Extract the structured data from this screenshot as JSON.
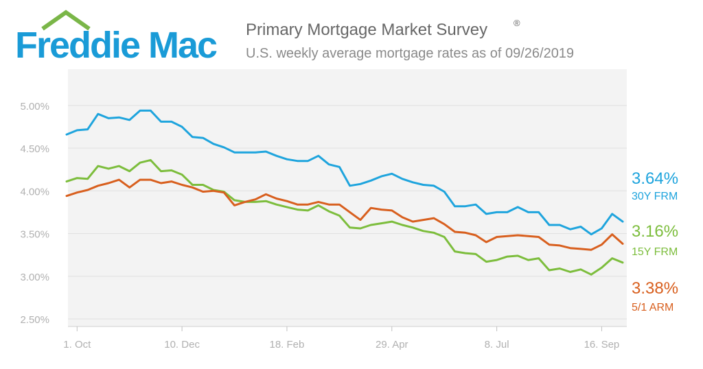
{
  "logo": {
    "text": "Freddie Mac",
    "house_color": "#7ab648",
    "text_color": "#1a9bd7"
  },
  "header": {
    "title": "Primary Mortgage Market Survey",
    "title_mark": "®",
    "subtitle": "U.S. weekly average mortgage rates as of 09/26/2019"
  },
  "chart_data": {
    "type": "line",
    "title": "Primary Mortgage Market Survey",
    "subtitle": "U.S. weekly average mortgage rates as of 09/26/2019",
    "xlabel": "",
    "ylabel": "",
    "ylim": [
      2.5,
      5.25
    ],
    "yticks": [
      2.5,
      3.0,
      3.5,
      4.0,
      4.5,
      5.0
    ],
    "ytick_labels": [
      "2.50%",
      "3.00%",
      "3.50%",
      "4.00%",
      "4.50%",
      "5.00%"
    ],
    "xticks": [
      {
        "label": "1. Oct",
        "index": 1
      },
      {
        "label": "10. Dec",
        "index": 11
      },
      {
        "label": "18. Feb",
        "index": 21
      },
      {
        "label": "29. Apr",
        "index": 31
      },
      {
        "label": "8. Jul",
        "index": 41
      },
      {
        "label": "16. Sep",
        "index": 51
      }
    ],
    "grid": true,
    "series": [
      {
        "name": "30Y FRM",
        "label": "3.64%",
        "color": "#1ea4dd",
        "values": [
          4.66,
          4.71,
          4.72,
          4.9,
          4.85,
          4.86,
          4.83,
          4.94,
          4.94,
          4.81,
          4.81,
          4.75,
          4.63,
          4.62,
          4.55,
          4.51,
          4.45,
          4.45,
          4.45,
          4.46,
          4.41,
          4.37,
          4.35,
          4.35,
          4.41,
          4.31,
          4.28,
          4.06,
          4.08,
          4.12,
          4.17,
          4.2,
          4.14,
          4.1,
          4.07,
          4.06,
          3.99,
          3.82,
          3.82,
          3.84,
          3.73,
          3.75,
          3.75,
          3.81,
          3.75,
          3.75,
          3.6,
          3.6,
          3.55,
          3.58,
          3.49,
          3.56,
          3.73,
          3.64
        ]
      },
      {
        "name": "15Y FRM",
        "label": "3.16%",
        "color": "#7cbd3c",
        "values": [
          4.11,
          4.15,
          4.14,
          4.29,
          4.26,
          4.29,
          4.23,
          4.33,
          4.36,
          4.23,
          4.24,
          4.19,
          4.07,
          4.07,
          4.01,
          3.99,
          3.89,
          3.87,
          3.87,
          3.88,
          3.84,
          3.81,
          3.78,
          3.77,
          3.83,
          3.76,
          3.71,
          3.57,
          3.56,
          3.6,
          3.62,
          3.64,
          3.6,
          3.57,
          3.53,
          3.51,
          3.46,
          3.29,
          3.27,
          3.26,
          3.17,
          3.19,
          3.23,
          3.24,
          3.19,
          3.21,
          3.07,
          3.09,
          3.05,
          3.08,
          3.02,
          3.1,
          3.21,
          3.16
        ]
      },
      {
        "name": "5/1 ARM",
        "label": "3.38%",
        "color": "#d85f1e",
        "values": [
          3.94,
          3.98,
          4.01,
          4.06,
          4.09,
          4.13,
          4.04,
          4.13,
          4.13,
          4.09,
          4.11,
          4.07,
          4.04,
          3.99,
          4.0,
          3.98,
          3.83,
          3.87,
          3.9,
          3.96,
          3.91,
          3.88,
          3.84,
          3.84,
          3.87,
          3.84,
          3.84,
          3.75,
          3.66,
          3.8,
          3.78,
          3.77,
          3.69,
          3.64,
          3.66,
          3.68,
          3.61,
          3.52,
          3.51,
          3.48,
          3.4,
          3.46,
          3.47,
          3.48,
          3.47,
          3.46,
          3.37,
          3.36,
          3.33,
          3.32,
          3.31,
          3.37,
          3.49,
          3.38
        ]
      }
    ]
  }
}
